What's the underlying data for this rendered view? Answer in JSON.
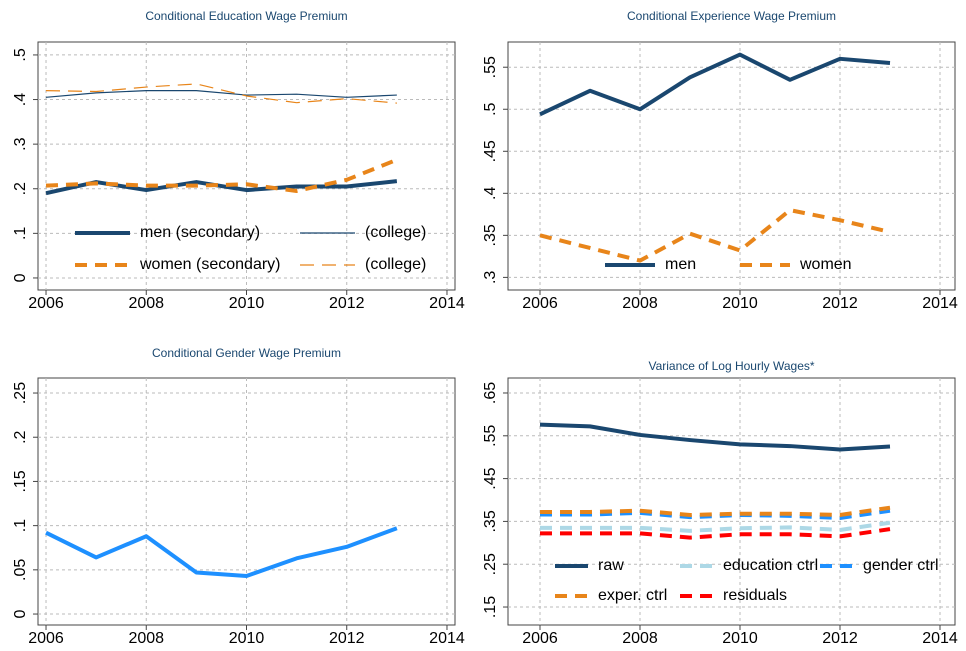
{
  "chart_data": [
    {
      "type": "line",
      "title": "Conditional Education Wage Premium",
      "x": [
        2006,
        2007,
        2008,
        2009,
        2010,
        2011,
        2012,
        2013
      ],
      "xlim": [
        2005.84,
        2014.16
      ],
      "xticks": [
        2006,
        2008,
        2010,
        2012,
        2014
      ],
      "ylim": [
        -0.027,
        0.529
      ],
      "yticks": [
        {
          "value": 0,
          "label": "0"
        },
        {
          "value": 0.1,
          "label": ".1"
        },
        {
          "value": 0.2,
          "label": ".2"
        },
        {
          "value": 0.3,
          "label": ".3"
        },
        {
          "value": 0.4,
          "label": ".4"
        },
        {
          "value": 0.5,
          "label": ".5"
        }
      ],
      "grid": true,
      "legend_columns": 2,
      "series": [
        {
          "name": "men (secondary)",
          "color": "#1a476f",
          "thick": true,
          "dashed": false,
          "values": [
            0.19,
            0.215,
            0.197,
            0.215,
            0.197,
            0.205,
            0.205,
            0.217
          ]
        },
        {
          "name": "(college)",
          "color": "#1a476f",
          "thick": false,
          "dashed": false,
          "values": [
            0.405,
            0.415,
            0.42,
            0.42,
            0.41,
            0.412,
            0.405,
            0.41
          ]
        },
        {
          "name": "women (secondary)",
          "color": "#e8851a",
          "thick": true,
          "dashed": true,
          "values": [
            0.207,
            0.212,
            0.207,
            0.207,
            0.21,
            0.195,
            0.22,
            0.265
          ]
        },
        {
          "name": "(college)",
          "color": "#e8851a",
          "thick": false,
          "dashed": true,
          "values": [
            0.42,
            0.418,
            0.428,
            0.435,
            0.408,
            0.393,
            0.402,
            0.392
          ]
        }
      ]
    },
    {
      "type": "line",
      "title": "Conditional Experience Wage Premium",
      "x": [
        2006,
        2007,
        2008,
        2009,
        2010,
        2011,
        2012,
        2013
      ],
      "xlim": [
        2005.36,
        2014.3
      ],
      "xticks": [
        2006,
        2008,
        2010,
        2012,
        2014
      ],
      "ylim": [
        0.285,
        0.58
      ],
      "yticks": [
        {
          "value": 0.3,
          "label": ".3"
        },
        {
          "value": 0.35,
          "label": ".35"
        },
        {
          "value": 0.4,
          "label": ".4"
        },
        {
          "value": 0.45,
          "label": ".45"
        },
        {
          "value": 0.5,
          "label": ".5"
        },
        {
          "value": 0.55,
          "label": ".55"
        }
      ],
      "grid": true,
      "legend_columns": 2,
      "series": [
        {
          "name": "men",
          "color": "#1a476f",
          "thick": true,
          "dashed": false,
          "values": [
            0.494,
            0.522,
            0.5,
            0.538,
            0.565,
            0.535,
            0.56,
            0.555
          ]
        },
        {
          "name": "women",
          "color": "#e8851a",
          "thick": true,
          "dashed": true,
          "values": [
            0.35,
            0.335,
            0.32,
            0.352,
            0.332,
            0.38,
            0.368,
            0.354
          ]
        }
      ]
    },
    {
      "type": "line",
      "title": "Conditional Gender Wage Premium",
      "x": [
        2006,
        2007,
        2008,
        2009,
        2010,
        2011,
        2012,
        2013
      ],
      "xlim": [
        2005.84,
        2014.16
      ],
      "xticks": [
        2006,
        2008,
        2010,
        2012,
        2014
      ],
      "ylim": [
        -0.0124,
        0.267
      ],
      "yticks": [
        {
          "value": 0,
          "label": "0"
        },
        {
          "value": 0.05,
          "label": ".05"
        },
        {
          "value": 0.1,
          "label": ".1"
        },
        {
          "value": 0.15,
          "label": ".15"
        },
        {
          "value": 0.2,
          "label": ".2"
        },
        {
          "value": 0.25,
          "label": ".25"
        }
      ],
      "grid": true,
      "series": [
        {
          "color": "#1e90ff",
          "thick": true,
          "dashed": false,
          "values": [
            0.092,
            0.064,
            0.088,
            0.047,
            0.043,
            0.063,
            0.076,
            0.097
          ]
        }
      ]
    },
    {
      "type": "line",
      "title": "Variance of Log Hourly Wages*",
      "x": [
        2006,
        2007,
        2008,
        2009,
        2010,
        2011,
        2012,
        2013
      ],
      "xlim": [
        2005.36,
        2014.3
      ],
      "xticks": [
        2006,
        2008,
        2010,
        2012,
        2014
      ],
      "ylim": [
        0.108,
        0.685
      ],
      "yticks": [
        {
          "value": 0.15,
          "label": ".15"
        },
        {
          "value": 0.25,
          "label": ".25"
        },
        {
          "value": 0.35,
          "label": ".35"
        },
        {
          "value": 0.45,
          "label": ".45"
        },
        {
          "value": 0.55,
          "label": ".55"
        },
        {
          "value": 0.65,
          "label": ".65"
        }
      ],
      "grid": true,
      "legend_columns": 3,
      "series": [
        {
          "name": "raw",
          "color": "#1a476f",
          "thick": true,
          "dashed": false,
          "values": [
            0.576,
            0.572,
            0.552,
            0.54,
            0.53,
            0.526,
            0.518,
            0.525
          ]
        },
        {
          "name": "education ctrl",
          "color": "#add8e6",
          "thick": true,
          "dashed": true,
          "values": [
            0.335,
            0.335,
            0.335,
            0.328,
            0.334,
            0.336,
            0.33,
            0.347
          ]
        },
        {
          "name": "gender ctrl",
          "color": "#1e90ff",
          "thick": true,
          "dashed": true,
          "values": [
            0.366,
            0.366,
            0.37,
            0.36,
            0.365,
            0.363,
            0.358,
            0.375
          ]
        },
        {
          "name": "exper. ctrl",
          "color": "#e8851a",
          "thick": true,
          "dashed": true,
          "values": [
            0.372,
            0.372,
            0.375,
            0.365,
            0.368,
            0.368,
            0.365,
            0.382
          ]
        },
        {
          "name": "residuals",
          "color": "#ff0000",
          "thick": true,
          "dashed": true,
          "values": [
            0.322,
            0.322,
            0.322,
            0.312,
            0.32,
            0.32,
            0.315,
            0.332
          ]
        }
      ]
    }
  ]
}
